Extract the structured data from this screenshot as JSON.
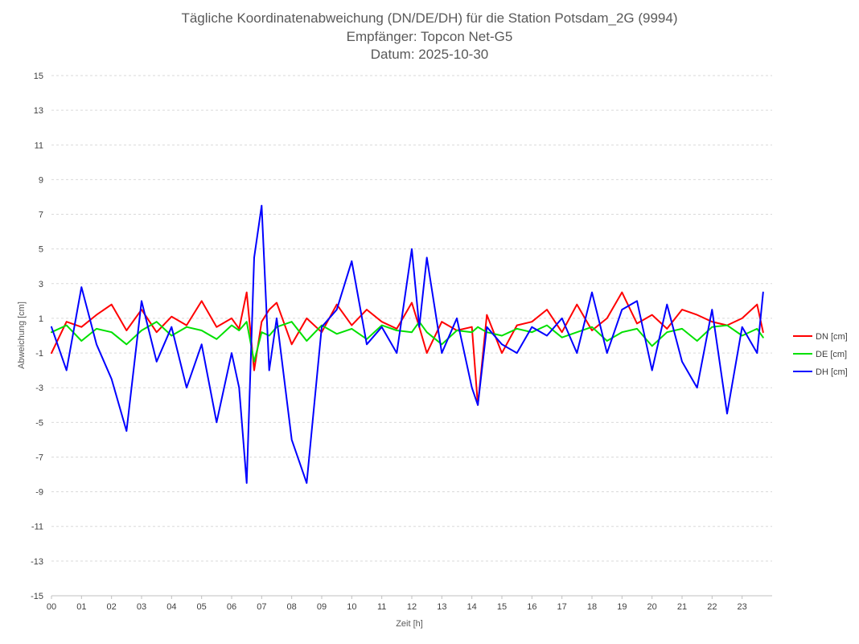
{
  "chart_data": {
    "type": "line",
    "title": [
      "Tägliche Koordinatenabweichung (DN/DE/DH) für die Station Potsdam_2G (9994)",
      "Empfänger: Topcon Net-G5",
      "Datum: 2025-10-30"
    ],
    "xlabel": "Zeit [h]",
    "ylabel": "Abweichung [cm]",
    "xlim": [
      0,
      24
    ],
    "ylim": [
      -15,
      15
    ],
    "x_ticks": [
      "00",
      "01",
      "02",
      "03",
      "04",
      "05",
      "06",
      "07",
      "08",
      "09",
      "10",
      "11",
      "12",
      "13",
      "14",
      "15",
      "16",
      "17",
      "18",
      "19",
      "20",
      "21",
      "22",
      "23"
    ],
    "y_ticks": [
      -15,
      -13,
      -11,
      -9,
      -7,
      -5,
      -3,
      -1,
      1,
      3,
      5,
      7,
      9,
      11,
      13,
      15
    ],
    "legend_position": "right",
    "x": [
      0.0,
      0.5,
      1.0,
      1.5,
      2.0,
      2.5,
      3.0,
      3.5,
      4.0,
      4.5,
      5.0,
      5.5,
      6.0,
      6.25,
      6.5,
      6.75,
      7.0,
      7.25,
      7.5,
      8.0,
      8.5,
      9.0,
      9.5,
      10.0,
      10.5,
      11.0,
      11.5,
      12.0,
      12.25,
      12.5,
      13.0,
      13.5,
      14.0,
      14.2,
      14.5,
      15.0,
      15.5,
      16.0,
      16.5,
      17.0,
      17.5,
      18.0,
      18.5,
      19.0,
      19.5,
      20.0,
      20.5,
      21.0,
      21.5,
      22.0,
      22.5,
      23.0,
      23.5,
      23.7
    ],
    "series": [
      {
        "name": "DN [cm]",
        "color": "#ff0000",
        "values": [
          -1.0,
          0.8,
          0.5,
          1.2,
          1.8,
          0.3,
          1.5,
          0.2,
          1.1,
          0.6,
          2.0,
          0.5,
          1.0,
          0.4,
          2.5,
          -2.0,
          0.8,
          1.5,
          1.9,
          -0.5,
          1.0,
          0.2,
          1.8,
          0.6,
          1.5,
          0.8,
          0.4,
          1.9,
          0.5,
          -1.0,
          0.8,
          0.3,
          0.5,
          -4.0,
          1.2,
          -1.0,
          0.6,
          0.8,
          1.5,
          0.2,
          1.8,
          0.3,
          1.0,
          2.5,
          0.7,
          1.2,
          0.4,
          1.5,
          1.2,
          0.8,
          0.6,
          1.0,
          1.8,
          0.2
        ]
      },
      {
        "name": "DE [cm]",
        "color": "#00e000",
        "values": [
          0.2,
          0.6,
          -0.3,
          0.4,
          0.2,
          -0.5,
          0.3,
          0.8,
          0.0,
          0.5,
          0.3,
          -0.2,
          0.6,
          0.3,
          0.8,
          -1.5,
          0.2,
          0.0,
          0.5,
          0.8,
          -0.3,
          0.6,
          0.1,
          0.4,
          -0.2,
          0.6,
          0.3,
          0.2,
          0.8,
          0.2,
          -0.5,
          0.3,
          0.2,
          0.5,
          0.2,
          0.0,
          0.4,
          0.2,
          0.6,
          -0.1,
          0.2,
          0.5,
          -0.3,
          0.2,
          0.4,
          -0.6,
          0.2,
          0.4,
          -0.3,
          0.5,
          0.6,
          0.0,
          0.4,
          -0.1
        ]
      },
      {
        "name": "DH [cm]",
        "color": "#0000ff",
        "values": [
          0.5,
          -2.0,
          2.8,
          -0.5,
          -2.5,
          -5.5,
          2.0,
          -1.5,
          0.5,
          -3.0,
          -0.5,
          -5.0,
          -1.0,
          -3.0,
          -8.5,
          4.5,
          7.5,
          -2.0,
          1.0,
          -6.0,
          -8.5,
          0.5,
          1.5,
          4.3,
          -0.5,
          0.5,
          -1.0,
          5.0,
          0.5,
          4.5,
          -1.0,
          1.0,
          -3.0,
          -4.0,
          0.5,
          -0.5,
          -1.0,
          0.5,
          0.0,
          1.0,
          -1.0,
          2.5,
          -1.0,
          1.5,
          2.0,
          -2.0,
          1.8,
          -1.5,
          -3.0,
          1.5,
          -4.5,
          0.5,
          -1.0,
          2.5
        ]
      }
    ]
  }
}
